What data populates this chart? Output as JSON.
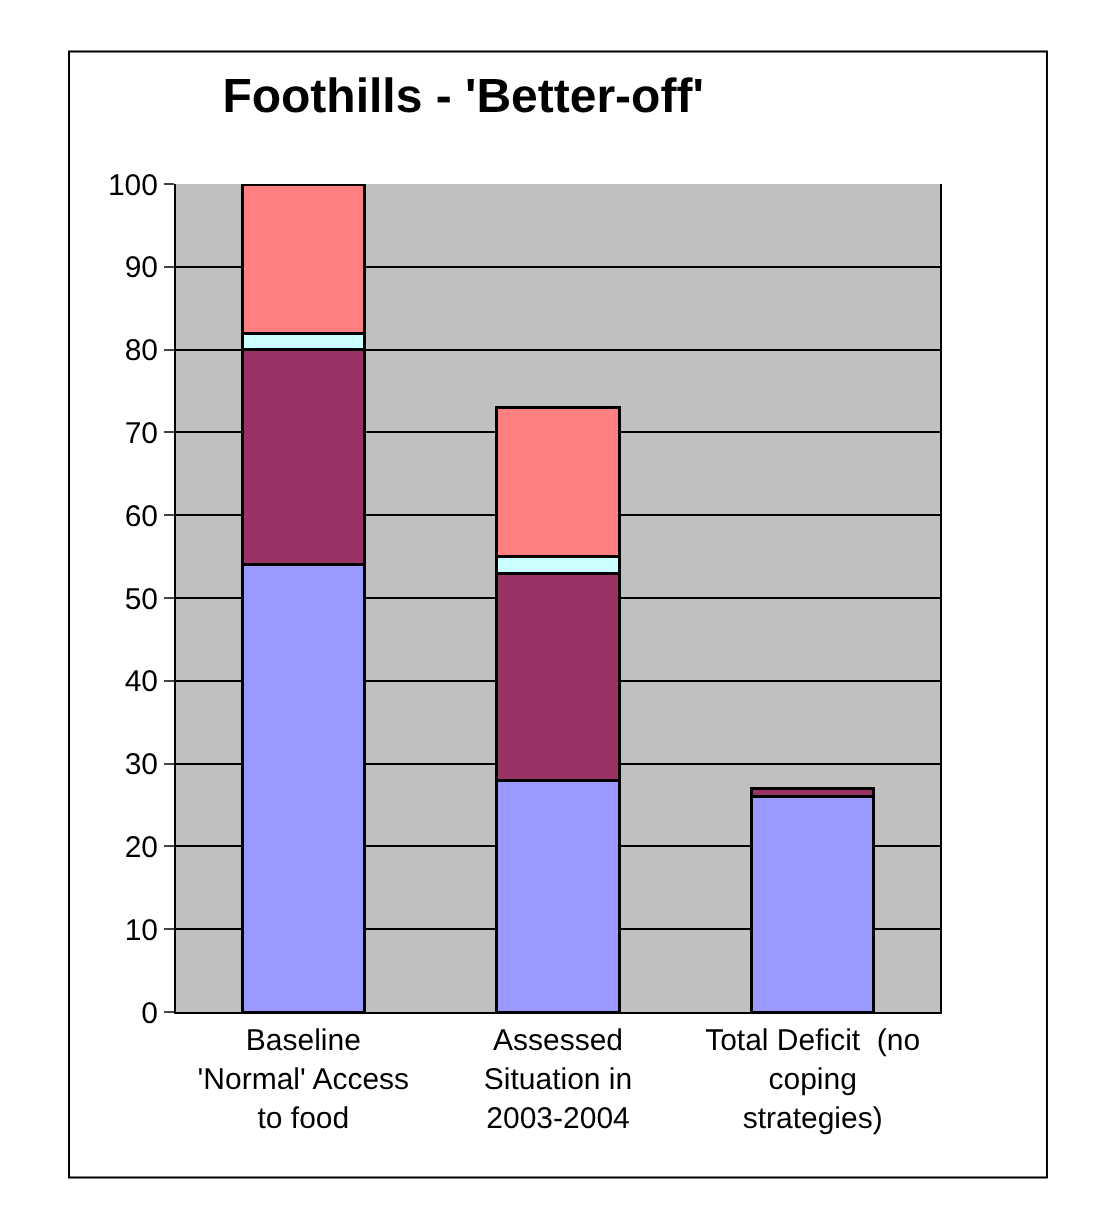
{
  "chart_data": {
    "type": "bar",
    "title": "Foothills - 'Better-off'",
    "categories": [
      "Baseline\n'Normal' Access\nto food",
      "Assessed\nSituation in\n2003-2004",
      "Total Deficit  (no\ncoping\nstrategies)"
    ],
    "stacked": true,
    "series": [
      {
        "color": "#9999ff",
        "values": [
          54,
          28,
          26
        ]
      },
      {
        "color": "#993366",
        "values": [
          26,
          25,
          1
        ]
      },
      {
        "color": "#ccffff",
        "values": [
          2,
          2,
          null
        ]
      },
      {
        "color": "#ff8080",
        "values": [
          18,
          18,
          null
        ]
      }
    ],
    "ylim": [
      0,
      100
    ],
    "yticks": [
      0,
      10,
      20,
      30,
      40,
      50,
      60,
      70,
      80,
      90,
      100
    ],
    "grid": "y"
  }
}
